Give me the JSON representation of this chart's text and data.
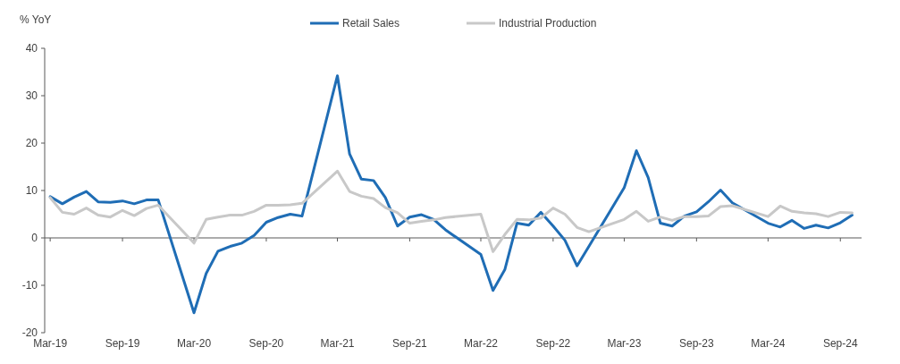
{
  "chart_data": {
    "type": "line",
    "ylabel": "% YoY",
    "x": [
      "2019-03",
      "2019-04",
      "2019-05",
      "2019-06",
      "2019-07",
      "2019-08",
      "2019-09",
      "2019-10",
      "2019-11",
      "2019-12",
      "2020-03",
      "2020-04",
      "2020-05",
      "2020-06",
      "2020-07",
      "2020-08",
      "2020-09",
      "2020-10",
      "2020-11",
      "2020-12",
      "2021-03",
      "2021-04",
      "2021-05",
      "2021-06",
      "2021-07",
      "2021-08",
      "2021-09",
      "2021-10",
      "2021-11",
      "2021-12",
      "2022-03",
      "2022-04",
      "2022-05",
      "2022-06",
      "2022-07",
      "2022-08",
      "2022-09",
      "2022-10",
      "2022-11",
      "2022-12",
      "2023-03",
      "2023-04",
      "2023-05",
      "2023-06",
      "2023-07",
      "2023-08",
      "2023-09",
      "2023-10",
      "2023-11",
      "2023-12",
      "2024-03",
      "2024-04",
      "2024-05",
      "2024-06",
      "2024-07",
      "2024-08",
      "2024-09",
      "2024-10"
    ],
    "series": [
      {
        "name": "Retail Sales",
        "color": "#1f6db5",
        "values": [
          8.7,
          7.2,
          8.6,
          9.8,
          7.6,
          7.5,
          7.8,
          7.2,
          8.0,
          8.0,
          -15.8,
          -7.5,
          -2.8,
          -1.8,
          -1.1,
          0.5,
          3.3,
          4.3,
          5.0,
          4.6,
          34.2,
          17.7,
          12.4,
          12.1,
          8.5,
          2.5,
          4.4,
          4.9,
          3.9,
          1.7,
          -3.5,
          -11.1,
          -6.7,
          3.1,
          2.7,
          5.4,
          2.5,
          -0.5,
          -5.9,
          -1.8,
          10.6,
          18.4,
          12.7,
          3.1,
          2.5,
          4.6,
          5.5,
          7.6,
          10.1,
          7.4,
          3.1,
          2.3,
          3.7,
          2.0,
          2.7,
          2.1,
          3.2,
          4.8
        ]
      },
      {
        "name": "Industrial Production",
        "color": "#c8c8c8",
        "values": [
          8.5,
          5.4,
          5.0,
          6.3,
          4.8,
          4.4,
          5.8,
          4.7,
          6.2,
          6.9,
          -1.1,
          3.9,
          4.4,
          4.8,
          4.8,
          5.6,
          6.9,
          6.9,
          7.0,
          7.3,
          14.1,
          9.8,
          8.8,
          8.3,
          6.4,
          5.3,
          3.1,
          3.5,
          3.8,
          4.3,
          5.0,
          -2.9,
          0.7,
          3.9,
          3.8,
          4.2,
          6.3,
          5.0,
          2.2,
          1.3,
          3.9,
          5.6,
          3.5,
          4.4,
          3.7,
          4.5,
          4.5,
          4.6,
          6.6,
          6.8,
          4.5,
          6.7,
          5.6,
          5.3,
          5.1,
          4.5,
          5.4,
          5.3
        ]
      }
    ],
    "xlim": [
      "2019-02-15",
      "2024-10-25"
    ],
    "xticks": [
      {
        "value": "2019-03",
        "label": "Mar-19"
      },
      {
        "value": "2019-09",
        "label": "Sep-19"
      },
      {
        "value": "2020-03",
        "label": "Mar-20"
      },
      {
        "value": "2020-09",
        "label": "Sep-20"
      },
      {
        "value": "2021-03",
        "label": "Mar-21"
      },
      {
        "value": "2021-09",
        "label": "Sep-21"
      },
      {
        "value": "2022-03",
        "label": "Mar-22"
      },
      {
        "value": "2022-09",
        "label": "Sep-22"
      },
      {
        "value": "2023-03",
        "label": "Mar-23"
      },
      {
        "value": "2023-09",
        "label": "Sep-23"
      },
      {
        "value": "2024-03",
        "label": "Mar-24"
      },
      {
        "value": "2024-09",
        "label": "Sep-24"
      }
    ],
    "ylim": [
      -20,
      40
    ],
    "yticks": [
      -20,
      -10,
      0,
      10,
      20,
      30,
      40
    ],
    "legend": "top"
  }
}
